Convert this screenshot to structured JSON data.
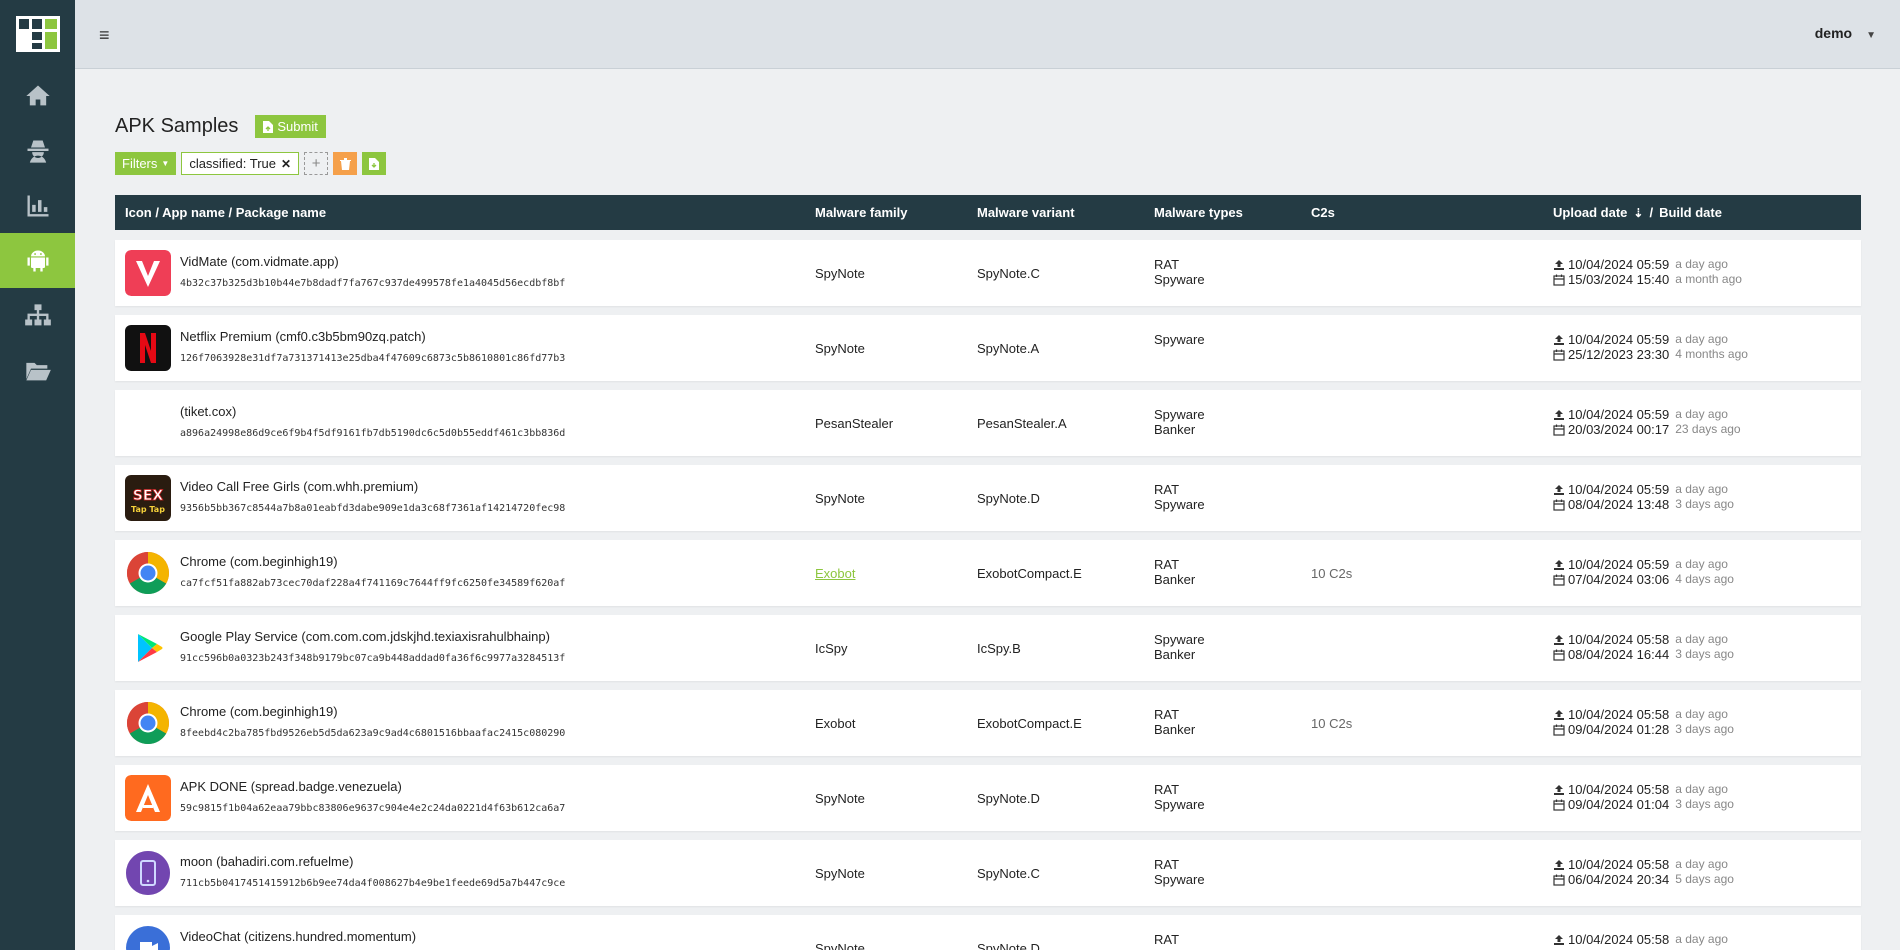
{
  "app": {
    "user": "demo"
  },
  "sidebar": {
    "items": [
      "home",
      "malware",
      "statistics",
      "apk-samples",
      "hierarchy",
      "files"
    ],
    "active": "apk-samples"
  },
  "page": {
    "title": "APK Samples",
    "submit_label": "Submit",
    "filters_label": "Filters",
    "filter_chip": "classified: True",
    "add_filter": "+"
  },
  "table": {
    "columns": {
      "icon_name": "Icon / App name / Package name",
      "family": "Malware family",
      "variant": "Malware variant",
      "types": "Malware types",
      "c2s": "C2s",
      "upload": "Upload date",
      "sep": "/",
      "build": "Build date"
    },
    "rows": [
      {
        "name": "VidMate (com.vidmate.app)",
        "hash": "4b32c37b325d3b10b44e7b8dadf7fa767c937de499578fe1a4045d56ecdbf8bf",
        "family": "SpyNote",
        "variant": "SpyNote.C",
        "type1": "RAT",
        "type2": "Spyware",
        "c2s": "",
        "upload": "10/04/2024 05:59",
        "upload_ago": "a day ago",
        "build": "15/03/2024 15:40",
        "build_ago": "a month ago",
        "icon": "vidmate-icon"
      },
      {
        "name": "Netflix Premium (cmf0.c3b5bm90zq.patch)",
        "hash": "126f7063928e31df7a731371413e25dba4f47609c6873c5b8610801c86fd77b3",
        "family": "SpyNote",
        "variant": "SpyNote.A",
        "type1": "Spyware",
        "type2": "",
        "c2s": "",
        "upload": "10/04/2024 05:59",
        "upload_ago": "a day ago",
        "build": "25/12/2023 23:30",
        "build_ago": "4 months ago",
        "icon": "netflix-icon"
      },
      {
        "name": "(tiket.cox)",
        "hash": "a896a24998e86d9ce6f9b4f5df9161fb7db5190dc6c5d0b55eddf461c3bb836d",
        "family": "PesanStealer",
        "variant": "PesanStealer.A",
        "type1": "Spyware",
        "type2": "Banker",
        "c2s": "",
        "upload": "10/04/2024 05:59",
        "upload_ago": "a day ago",
        "build": "20/03/2024 00:17",
        "build_ago": "23 days ago",
        "icon": "none"
      },
      {
        "name": "Video Call Free Girls (com.whh.premium)",
        "hash": "9356b5bb367c8544a7b8a01eabfd3dabe909e1da3c68f7361af14214720fec98",
        "family": "SpyNote",
        "variant": "SpyNote.D",
        "type1": "RAT",
        "type2": "Spyware",
        "c2s": "",
        "upload": "10/04/2024 05:59",
        "upload_ago": "a day ago",
        "build": "08/04/2024 13:48",
        "build_ago": "3 days ago",
        "icon": "sex-tap-icon",
        "icon_text1": "SEX",
        "icon_text2": "Tap Tap"
      },
      {
        "name": "Chrome (com.beginhigh19)",
        "hash": "ca7fcf51fa882ab73cec70daf228a4f741169c7644ff9fc6250fe34589f620af",
        "family": "Exobot",
        "family_link": true,
        "variant": "ExobotCompact.E",
        "type1": "RAT",
        "type2": "Banker",
        "c2s": "10 C2s",
        "upload": "10/04/2024 05:59",
        "upload_ago": "a day ago",
        "build": "07/04/2024 03:06",
        "build_ago": "4 days ago",
        "icon": "chrome-icon"
      },
      {
        "name": "Google Play Service (com.com.com.jdskjhd.texiaxisrahulbhainp)",
        "hash": "91cc596b0a0323b243f348b9179bc07ca9b448addad0fa36f6c9977a3284513f",
        "family": "IcSpy",
        "variant": "IcSpy.B",
        "type1": "Spyware",
        "type2": "Banker",
        "c2s": "",
        "upload": "10/04/2024 05:58",
        "upload_ago": "a day ago",
        "build": "08/04/2024 16:44",
        "build_ago": "3 days ago",
        "icon": "play-icon"
      },
      {
        "name": "Chrome (com.beginhigh19)",
        "hash": "8feebd4c2ba785fbd9526eb5d5da623a9c9ad4c6801516bbaafac2415c080290",
        "family": "Exobot",
        "variant": "ExobotCompact.E",
        "type1": "RAT",
        "type2": "Banker",
        "c2s": "10 C2s",
        "upload": "10/04/2024 05:58",
        "upload_ago": "a day ago",
        "build": "09/04/2024 01:28",
        "build_ago": "3 days ago",
        "icon": "chrome-icon"
      },
      {
        "name": "APK DONE (spread.badge.venezuela)",
        "hash": "59c9815f1b04a62eaa79bbc83806e9637c904e4e2c24da0221d4f63b612ca6a7",
        "family": "SpyNote",
        "variant": "SpyNote.D",
        "type1": "RAT",
        "type2": "Spyware",
        "c2s": "",
        "upload": "10/04/2024 05:58",
        "upload_ago": "a day ago",
        "build": "09/04/2024 01:04",
        "build_ago": "3 days ago",
        "icon": "apkdone-icon"
      },
      {
        "name": "moon (bahadiri.com.refuelme)",
        "hash": "711cb5b0417451415912b6b9ee74da4f008627b4e9be1feede69d5a7b447c9ce",
        "family": "SpyNote",
        "variant": "SpyNote.C",
        "type1": "RAT",
        "type2": "Spyware",
        "c2s": "",
        "upload": "10/04/2024 05:58",
        "upload_ago": "a day ago",
        "build": "06/04/2024 20:34",
        "build_ago": "5 days ago",
        "icon": "moon-icon"
      },
      {
        "name": "VideoChat (citizens.hundred.momentum)",
        "hash": "",
        "family": "SpyNote",
        "variant": "SpyNote.D",
        "type1": "RAT",
        "type2": "",
        "c2s": "",
        "upload": "10/04/2024 05:58",
        "upload_ago": "a day ago",
        "build": "",
        "build_ago": "",
        "icon": "videochat-icon"
      }
    ]
  },
  "colors": {
    "sidebar": "#243b44",
    "accent": "#8dc63f",
    "danger": "#f5a04a"
  }
}
